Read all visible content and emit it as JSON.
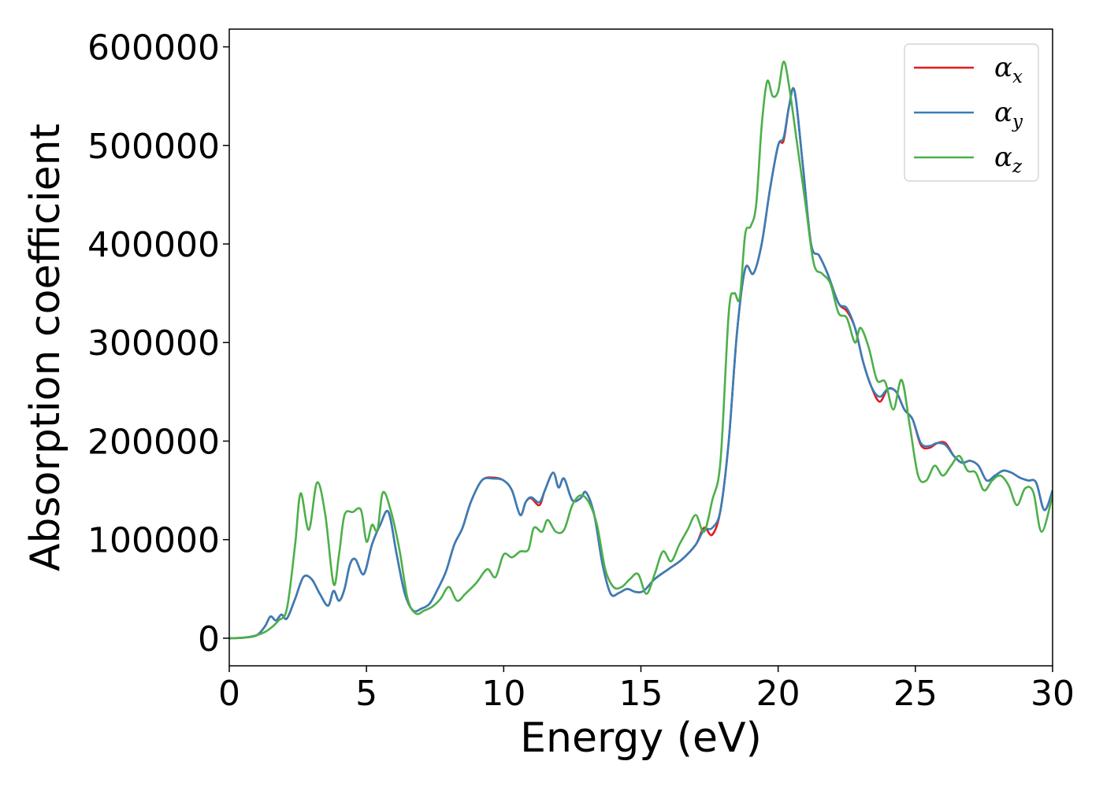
{
  "chart_data": {
    "type": "line",
    "title": "",
    "xlabel": "Energy (eV)",
    "ylabel": "Absorption coefficient",
    "xlim": [
      0,
      30
    ],
    "ylim": [
      -28000,
      618000
    ],
    "xticks": [
      0,
      5,
      10,
      15,
      20,
      25,
      30
    ],
    "xtick_labels": [
      "0",
      "5",
      "10",
      "15",
      "20",
      "25",
      "30"
    ],
    "yticks": [
      0,
      100000,
      200000,
      300000,
      400000,
      500000,
      600000
    ],
    "ytick_labels": [
      "0",
      "100000",
      "200000",
      "300000",
      "400000",
      "500000",
      "600000"
    ],
    "grid": false,
    "legend_position": "top-right",
    "series": [
      {
        "name": "α",
        "subscript": "x",
        "color": "#e41a1c",
        "x": [
          0,
          0.5,
          1.0,
          1.3,
          1.5,
          1.7,
          1.9,
          2.1,
          2.4,
          2.7,
          3.0,
          3.3,
          3.6,
          3.8,
          4.0,
          4.2,
          4.4,
          4.6,
          4.9,
          5.2,
          5.5,
          5.8,
          6.1,
          6.4,
          6.7,
          7.0,
          7.3,
          7.6,
          7.9,
          8.2,
          8.5,
          8.8,
          9.2,
          9.6,
          10.0,
          10.3,
          10.6,
          10.8,
          11.0,
          11.3,
          11.5,
          11.8,
          12.0,
          12.2,
          12.5,
          12.8,
          13.0,
          13.3,
          13.6,
          13.9,
          14.2,
          14.5,
          14.8,
          15.1,
          15.5,
          16.0,
          16.5,
          17.0,
          17.3,
          17.6,
          17.9,
          18.2,
          18.5,
          18.8,
          19.1,
          19.4,
          19.7,
          20.0,
          20.2,
          20.4,
          20.6,
          20.9,
          21.2,
          21.5,
          21.8,
          22.2,
          22.5,
          22.8,
          23.1,
          23.4,
          23.7,
          24.0,
          24.3,
          24.6,
          24.9,
          25.2,
          25.5,
          25.8,
          26.1,
          26.4,
          26.7,
          27.0,
          27.3,
          27.6,
          27.9,
          28.2,
          28.5,
          28.8,
          29.1,
          29.4,
          29.7,
          30.0
        ],
        "y": [
          0,
          500,
          3000,
          12000,
          22000,
          18000,
          24000,
          20000,
          40000,
          62000,
          60000,
          45000,
          33000,
          48000,
          38000,
          50000,
          75000,
          80000,
          65000,
          95000,
          115000,
          128000,
          85000,
          45000,
          28000,
          30000,
          35000,
          50000,
          68000,
          95000,
          112000,
          138000,
          160000,
          163000,
          160000,
          150000,
          125000,
          138000,
          142000,
          135000,
          150000,
          168000,
          153000,
          162000,
          140000,
          142000,
          148000,
          125000,
          75000,
          45000,
          46000,
          50000,
          47000,
          48000,
          60000,
          70000,
          80000,
          95000,
          112000,
          105000,
          130000,
          200000,
          310000,
          375000,
          370000,
          400000,
          455000,
          500000,
          505000,
          540000,
          555000,
          480000,
          400000,
          388000,
          370000,
          340000,
          332000,
          315000,
          280000,
          255000,
          240000,
          253000,
          250000,
          232000,
          222000,
          196000,
          193000,
          198000,
          198000,
          185000,
          178000,
          180000,
          175000,
          160000,
          165000,
          170000,
          168000,
          163000,
          160000,
          158000,
          130000,
          150000
        ]
      },
      {
        "name": "α",
        "subscript": "y",
        "color": "#377eb8",
        "x": [
          0,
          0.5,
          1.0,
          1.3,
          1.5,
          1.7,
          1.9,
          2.1,
          2.4,
          2.7,
          3.0,
          3.3,
          3.6,
          3.8,
          4.0,
          4.2,
          4.4,
          4.6,
          4.9,
          5.2,
          5.5,
          5.8,
          6.1,
          6.4,
          6.7,
          7.0,
          7.3,
          7.6,
          7.9,
          8.2,
          8.5,
          8.8,
          9.2,
          9.6,
          10.0,
          10.3,
          10.6,
          10.8,
          11.0,
          11.3,
          11.5,
          11.8,
          12.0,
          12.2,
          12.5,
          12.8,
          13.0,
          13.3,
          13.6,
          13.9,
          14.2,
          14.5,
          14.8,
          15.1,
          15.5,
          16.0,
          16.5,
          17.0,
          17.3,
          17.6,
          17.9,
          18.2,
          18.5,
          18.8,
          19.1,
          19.4,
          19.7,
          20.0,
          20.2,
          20.4,
          20.6,
          20.9,
          21.2,
          21.5,
          21.8,
          22.2,
          22.5,
          22.8,
          23.1,
          23.4,
          23.7,
          24.0,
          24.3,
          24.6,
          24.9,
          25.2,
          25.5,
          25.8,
          26.1,
          26.4,
          26.7,
          27.0,
          27.3,
          27.6,
          27.9,
          28.2,
          28.5,
          28.8,
          29.1,
          29.4,
          29.7,
          30.0
        ],
        "y": [
          0,
          500,
          3000,
          12000,
          22000,
          18000,
          24000,
          20000,
          40000,
          62000,
          60000,
          45000,
          33000,
          48000,
          38000,
          50000,
          75000,
          80000,
          65000,
          95000,
          115000,
          128000,
          85000,
          45000,
          28000,
          30000,
          35000,
          50000,
          68000,
          95000,
          112000,
          138000,
          160000,
          162000,
          160000,
          150000,
          125000,
          138000,
          143000,
          138000,
          150000,
          168000,
          153000,
          162000,
          140000,
          142000,
          148000,
          125000,
          75000,
          45000,
          46000,
          50000,
          47000,
          48000,
          60000,
          70000,
          80000,
          95000,
          110000,
          112000,
          130000,
          200000,
          310000,
          375000,
          370000,
          400000,
          455000,
          500000,
          508000,
          540000,
          555000,
          480000,
          400000,
          388000,
          370000,
          340000,
          335000,
          315000,
          280000,
          255000,
          245000,
          253000,
          250000,
          232000,
          222000,
          198000,
          195000,
          198000,
          196000,
          185000,
          178000,
          180000,
          175000,
          160000,
          165000,
          170000,
          168000,
          163000,
          160000,
          158000,
          130000,
          150000
        ]
      },
      {
        "name": "α",
        "subscript": "z",
        "color": "#4daf4a",
        "x": [
          0,
          0.5,
          1.0,
          1.4,
          1.8,
          2.1,
          2.4,
          2.6,
          2.9,
          3.2,
          3.5,
          3.8,
          4.0,
          4.2,
          4.5,
          4.8,
          5.0,
          5.2,
          5.4,
          5.6,
          5.9,
          6.2,
          6.5,
          6.8,
          7.1,
          7.4,
          7.7,
          8.0,
          8.3,
          8.6,
          9.0,
          9.4,
          9.7,
          10.0,
          10.3,
          10.6,
          10.9,
          11.1,
          11.4,
          11.6,
          11.9,
          12.2,
          12.5,
          12.8,
          13.1,
          13.4,
          13.7,
          14.0,
          14.3,
          14.6,
          14.9,
          15.2,
          15.5,
          15.8,
          16.1,
          16.4,
          16.7,
          17.0,
          17.3,
          17.6,
          17.9,
          18.2,
          18.4,
          18.6,
          18.8,
          19.0,
          19.2,
          19.4,
          19.6,
          19.8,
          20.0,
          20.2,
          20.4,
          20.7,
          21.0,
          21.3,
          21.6,
          21.9,
          22.2,
          22.5,
          22.8,
          23.0,
          23.3,
          23.6,
          23.9,
          24.2,
          24.5,
          24.8,
          25.1,
          25.4,
          25.7,
          26.0,
          26.3,
          26.6,
          26.9,
          27.2,
          27.5,
          27.8,
          28.1,
          28.4,
          28.7,
          29.0,
          29.3,
          29.6,
          30.0
        ],
        "y": [
          0,
          500,
          3000,
          8000,
          18000,
          30000,
          95000,
          147000,
          110000,
          158000,
          125000,
          55000,
          85000,
          125000,
          128000,
          130000,
          98000,
          115000,
          110000,
          148000,
          128000,
          90000,
          40000,
          25000,
          28000,
          32000,
          40000,
          52000,
          38000,
          45000,
          56000,
          70000,
          62000,
          85000,
          82000,
          88000,
          90000,
          112000,
          108000,
          120000,
          108000,
          110000,
          135000,
          145000,
          138000,
          115000,
          70000,
          52000,
          52000,
          60000,
          65000,
          45000,
          65000,
          88000,
          78000,
          95000,
          110000,
          125000,
          108000,
          140000,
          180000,
          330000,
          350000,
          345000,
          410000,
          418000,
          440000,
          520000,
          565000,
          550000,
          555000,
          585000,
          560000,
          500000,
          440000,
          380000,
          370000,
          360000,
          330000,
          325000,
          300000,
          315000,
          295000,
          262000,
          260000,
          232000,
          262000,
          215000,
          165000,
          160000,
          175000,
          165000,
          175000,
          185000,
          170000,
          168000,
          150000,
          160000,
          165000,
          155000,
          135000,
          152000,
          148000,
          108000,
          145000
        ]
      }
    ]
  }
}
